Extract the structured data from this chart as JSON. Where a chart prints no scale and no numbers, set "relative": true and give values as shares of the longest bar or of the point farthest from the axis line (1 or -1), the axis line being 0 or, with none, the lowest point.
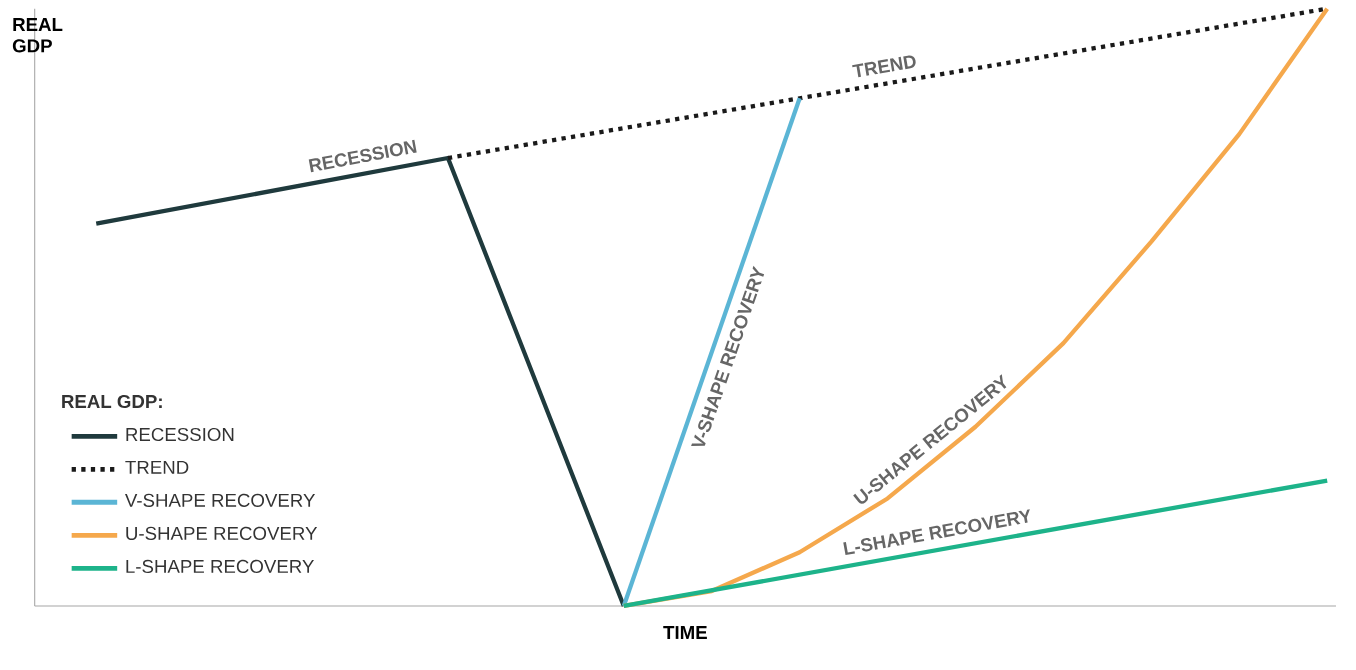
{
  "chart_data": {
    "type": "line",
    "relative": true,
    "ylabel": "REAL GDP",
    "xlabel": "TIME",
    "legend_title": "REAL GDP:",
    "legend": "bottom left",
    "categories": [
      null,
      null,
      null,
      null,
      null,
      null,
      null,
      null,
      null,
      null,
      null,
      null,
      null,
      null,
      null
    ],
    "series": [
      {
        "name": "RECESSION",
        "color": "#1f3a3d",
        "values": [
          0.64,
          null,
          null,
          null,
          0.75,
          null,
          0,
          null,
          null,
          null,
          null,
          null,
          null,
          null,
          null
        ]
      },
      {
        "name": "TREND",
        "color": "#1a1a1a",
        "line_style": "dotted",
        "values": [
          null,
          null,
          null,
          null,
          0.75,
          null,
          null,
          null,
          0.85,
          null,
          null,
          null,
          null,
          null,
          1.0
        ]
      },
      {
        "name": "V-SHAPE RECOVERY",
        "color": "#5bb5d5",
        "values": [
          null,
          null,
          null,
          null,
          null,
          null,
          0,
          null,
          0.85,
          null,
          null,
          null,
          null,
          null,
          null
        ]
      },
      {
        "name": "U-SHAPE RECOVERY",
        "color": "#f5a84c",
        "values": [
          null,
          null,
          null,
          null,
          null,
          null,
          0,
          0.025,
          0.09,
          0.18,
          0.3,
          0.44,
          0.61,
          0.79,
          1.0
        ]
      },
      {
        "name": "L-SHAPE RECOVERY",
        "color": "#1db38a",
        "values": [
          null,
          null,
          null,
          null,
          null,
          null,
          0,
          null,
          null,
          null,
          null,
          null,
          null,
          null,
          0.21
        ]
      }
    ]
  }
}
